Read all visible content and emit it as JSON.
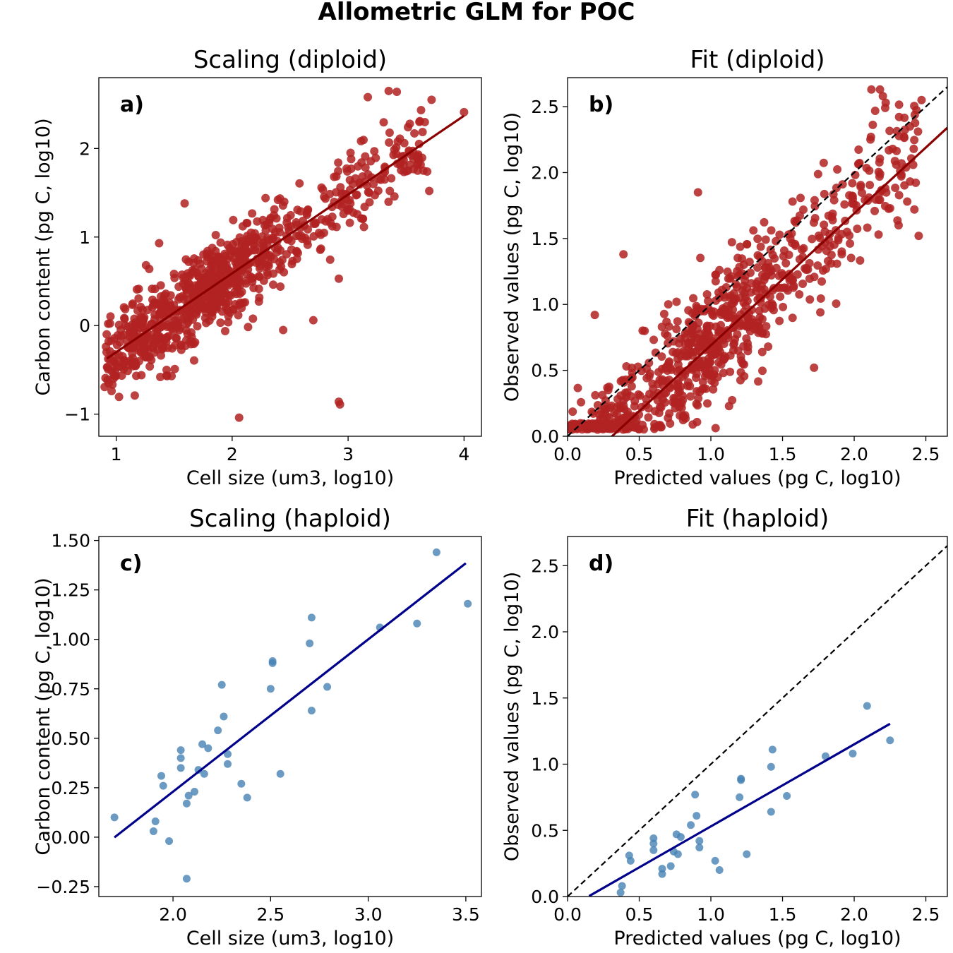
{
  "figure_title": "Allometric GLM for POC",
  "chart_data": [
    {
      "id": "a",
      "type": "scatter",
      "title": "Scaling (diploid)",
      "panel_label": "a)",
      "xlabel": "Cell size (um3, log10)",
      "ylabel": "Carbon content (pg C, log10)",
      "xlim": [
        0.85,
        4.15
      ],
      "ylim": [
        -1.25,
        2.8
      ],
      "xticks": [
        1,
        2,
        3,
        4
      ],
      "xtick_labels": [
        "1",
        "2",
        "3",
        "4"
      ],
      "yticks": [
        -1,
        0,
        1,
        2
      ],
      "ytick_labels": [
        "−1",
        "0",
        "1",
        "2"
      ],
      "point_color": "#b22222",
      "line_color": "#8b0000",
      "n_points": 900,
      "fit": {
        "slope": 0.89,
        "intercept": -1.19,
        "x_range": [
          0.92,
          4.0
        ]
      },
      "cloud": {
        "x_range": [
          0.9,
          3.7
        ],
        "noise_sd": 0.23,
        "seed": 7
      },
      "points": [
        {
          "x": 3.35,
          "y": 2.65
        },
        {
          "x": 3.42,
          "y": 2.64
        },
        {
          "x": 3.17,
          "y": 2.58
        },
        {
          "x": 3.72,
          "y": 2.55
        },
        {
          "x": 4.0,
          "y": 2.41
        },
        {
          "x": 3.45,
          "y": 1.84
        },
        {
          "x": 3.65,
          "y": 1.75
        },
        {
          "x": 3.7,
          "y": 1.52
        },
        {
          "x": 3.36,
          "y": 1.52
        },
        {
          "x": 1.59,
          "y": 1.38
        },
        {
          "x": 1.37,
          "y": 0.93
        },
        {
          "x": 0.96,
          "y": -0.74
        },
        {
          "x": 1.16,
          "y": -0.79
        },
        {
          "x": 1.38,
          "y": -0.58
        },
        {
          "x": 2.06,
          "y": -1.04
        },
        {
          "x": 2.92,
          "y": -0.86
        },
        {
          "x": 2.93,
          "y": -0.89
        },
        {
          "x": 2.92,
          "y": 0.53
        },
        {
          "x": 2.44,
          "y": -0.05
        },
        {
          "x": 2.7,
          "y": 0.06
        }
      ]
    },
    {
      "id": "b",
      "type": "scatter",
      "title": "Fit (diploid)",
      "panel_label": "b)",
      "xlabel": "Predicted values (pg C, log10)",
      "ylabel": "Observed values (pg C, log10)",
      "xlim": [
        0.0,
        2.65
      ],
      "ylim": [
        0.0,
        2.72
      ],
      "xticks": [
        0,
        0.5,
        1,
        1.5,
        2,
        2.5
      ],
      "xtick_labels": [
        "0.0",
        "0.5",
        "1.0",
        "1.5",
        "2.0",
        "2.5"
      ],
      "yticks": [
        0,
        0.5,
        1,
        1.5,
        2,
        2.5
      ],
      "ytick_labels": [
        "0.0",
        "0.5",
        "1.0",
        "1.5",
        "2.0",
        "2.5"
      ],
      "point_color": "#b22222",
      "line_color": "#8b0000",
      "n_points": 850,
      "identity_line": true,
      "fit": {
        "slope": 1.0,
        "intercept": -0.31,
        "x_range": [
          0.15,
          2.65
        ]
      },
      "cloud": {
        "x_range": [
          0.0,
          2.45
        ],
        "noise_sd": 0.23,
        "seed": 11
      },
      "points": [
        {
          "x": 2.12,
          "y": 2.63
        },
        {
          "x": 2.18,
          "y": 2.63
        },
        {
          "x": 2.2,
          "y": 2.58
        },
        {
          "x": 2.22,
          "y": 2.53
        },
        {
          "x": 2.47,
          "y": 2.55
        },
        {
          "x": 2.33,
          "y": 2.07
        },
        {
          "x": 2.37,
          "y": 1.78
        },
        {
          "x": 2.42,
          "y": 1.72
        },
        {
          "x": 2.45,
          "y": 1.52
        },
        {
          "x": 2.17,
          "y": 1.53
        },
        {
          "x": 2.31,
          "y": 1.6
        },
        {
          "x": 0.91,
          "y": 1.85
        },
        {
          "x": 0.39,
          "y": 1.38
        },
        {
          "x": 0.19,
          "y": 0.92
        },
        {
          "x": 1.72,
          "y": 0.52
        },
        {
          "x": 1.57,
          "y": 1.78
        }
      ]
    },
    {
      "id": "c",
      "type": "scatter",
      "title": "Scaling (haploid)",
      "panel_label": "c)",
      "xlabel": "Cell size (um3, log10)",
      "ylabel": "Carbon content (pg C, log10)",
      "xlim": [
        1.62,
        3.58
      ],
      "ylim": [
        -0.3,
        1.52
      ],
      "xticks": [
        2.0,
        2.5,
        3.0,
        3.5
      ],
      "xtick_labels": [
        "2.0",
        "2.5",
        "3.0",
        "3.5"
      ],
      "yticks": [
        -0.25,
        0,
        0.25,
        0.5,
        0.75,
        1.0,
        1.25,
        1.5
      ],
      "ytick_labels": [
        "−0.25",
        "0.00",
        "0.25",
        "0.50",
        "0.75",
        "1.00",
        "1.25",
        "1.50"
      ],
      "point_color": "#4682b4",
      "line_color": "#00008b",
      "fit": {
        "slope": 0.77,
        "intercept": -1.31,
        "x_range": [
          1.7,
          3.5
        ]
      },
      "points": [
        {
          "x": 1.7,
          "y": 0.1
        },
        {
          "x": 1.9,
          "y": 0.03
        },
        {
          "x": 1.91,
          "y": 0.08
        },
        {
          "x": 1.94,
          "y": 0.31
        },
        {
          "x": 1.95,
          "y": 0.26
        },
        {
          "x": 1.98,
          "y": -0.02
        },
        {
          "x": 2.04,
          "y": 0.44
        },
        {
          "x": 2.04,
          "y": 0.4
        },
        {
          "x": 2.04,
          "y": 0.35
        },
        {
          "x": 2.07,
          "y": -0.21
        },
        {
          "x": 2.07,
          "y": 0.17
        },
        {
          "x": 2.08,
          "y": 0.21
        },
        {
          "x": 2.11,
          "y": 0.23
        },
        {
          "x": 2.13,
          "y": 0.34
        },
        {
          "x": 2.15,
          "y": 0.47
        },
        {
          "x": 2.16,
          "y": 0.32
        },
        {
          "x": 2.18,
          "y": 0.45
        },
        {
          "x": 2.23,
          "y": 0.54
        },
        {
          "x": 2.25,
          "y": 0.77
        },
        {
          "x": 2.26,
          "y": 0.61
        },
        {
          "x": 2.28,
          "y": 0.37
        },
        {
          "x": 2.28,
          "y": 0.42
        },
        {
          "x": 2.35,
          "y": 0.27
        },
        {
          "x": 2.38,
          "y": 0.2
        },
        {
          "x": 2.5,
          "y": 0.75
        },
        {
          "x": 2.51,
          "y": 0.88
        },
        {
          "x": 2.51,
          "y": 0.89
        },
        {
          "x": 2.55,
          "y": 0.32
        },
        {
          "x": 2.7,
          "y": 0.98
        },
        {
          "x": 2.71,
          "y": 1.11
        },
        {
          "x": 2.71,
          "y": 0.64
        },
        {
          "x": 2.79,
          "y": 0.76
        },
        {
          "x": 3.06,
          "y": 1.06
        },
        {
          "x": 3.25,
          "y": 1.08
        },
        {
          "x": 3.35,
          "y": 1.44
        },
        {
          "x": 3.51,
          "y": 1.18
        }
      ]
    },
    {
      "id": "d",
      "type": "scatter",
      "title": "Fit (haploid)",
      "panel_label": "d)",
      "xlabel": "Predicted values (pg C, log10)",
      "ylabel": "Observed values (pg C, log10)",
      "xlim": [
        0.0,
        2.65
      ],
      "ylim": [
        0.0,
        2.72
      ],
      "xticks": [
        0,
        0.5,
        1,
        1.5,
        2,
        2.5
      ],
      "xtick_labels": [
        "0.0",
        "0.5",
        "1.0",
        "1.5",
        "2.0",
        "2.5"
      ],
      "yticks": [
        0,
        0.5,
        1,
        1.5,
        2,
        2.5
      ],
      "ytick_labels": [
        "0.0",
        "0.5",
        "1.0",
        "1.5",
        "2.0",
        "2.5"
      ],
      "point_color": "#4682b4",
      "line_color": "#00008b",
      "identity_line": true,
      "fit": {
        "slope": 0.62,
        "intercept": -0.09,
        "x_range": [
          0.15,
          2.25
        ]
      },
      "points": [
        {
          "x": 0.37,
          "y": 0.03
        },
        {
          "x": 0.38,
          "y": 0.08
        },
        {
          "x": 0.43,
          "y": 0.31
        },
        {
          "x": 0.44,
          "y": 0.27
        },
        {
          "x": 0.6,
          "y": 0.44
        },
        {
          "x": 0.6,
          "y": 0.4
        },
        {
          "x": 0.6,
          "y": 0.35
        },
        {
          "x": 0.66,
          "y": 0.17
        },
        {
          "x": 0.66,
          "y": 0.21
        },
        {
          "x": 0.72,
          "y": 0.23
        },
        {
          "x": 0.74,
          "y": 0.34
        },
        {
          "x": 0.76,
          "y": 0.47
        },
        {
          "x": 0.77,
          "y": 0.32
        },
        {
          "x": 0.79,
          "y": 0.45
        },
        {
          "x": 0.86,
          "y": 0.54
        },
        {
          "x": 0.89,
          "y": 0.77
        },
        {
          "x": 0.9,
          "y": 0.61
        },
        {
          "x": 0.92,
          "y": 0.37
        },
        {
          "x": 0.92,
          "y": 0.42
        },
        {
          "x": 1.03,
          "y": 0.27
        },
        {
          "x": 1.06,
          "y": 0.2
        },
        {
          "x": 1.2,
          "y": 0.75
        },
        {
          "x": 1.21,
          "y": 0.88
        },
        {
          "x": 1.21,
          "y": 0.89
        },
        {
          "x": 1.25,
          "y": 0.32
        },
        {
          "x": 1.42,
          "y": 0.98
        },
        {
          "x": 1.43,
          "y": 1.11
        },
        {
          "x": 1.42,
          "y": 0.64
        },
        {
          "x": 1.53,
          "y": 0.76
        },
        {
          "x": 1.8,
          "y": 1.06
        },
        {
          "x": 1.99,
          "y": 1.08
        },
        {
          "x": 2.09,
          "y": 1.44
        },
        {
          "x": 2.25,
          "y": 1.18
        }
      ]
    }
  ]
}
